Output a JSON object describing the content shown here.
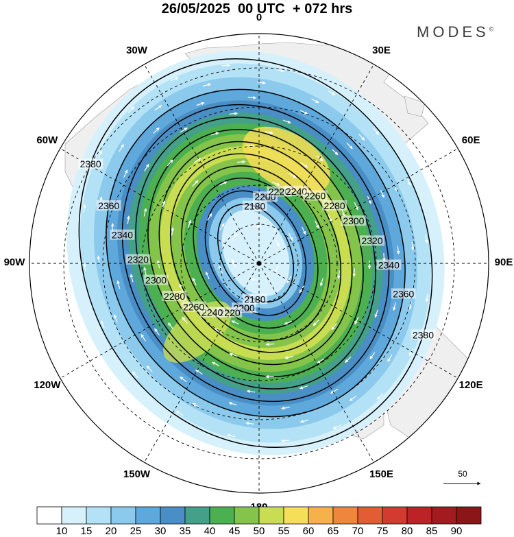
{
  "title": "26/05/2025  00 UTC  + 072 hrs",
  "brand": {
    "text": "MODES",
    "mark": "©"
  },
  "longitude_labels": [
    "0",
    "30E",
    "60E",
    "90E",
    "120E",
    "150E",
    "180",
    "150W",
    "120W",
    "90W",
    "60W",
    "30W"
  ],
  "vector_reference": {
    "label": "50"
  },
  "colorbar": {
    "ticks": [
      "10",
      "15",
      "20",
      "25",
      "30",
      "35",
      "40",
      "45",
      "50",
      "55",
      "60",
      "65",
      "70",
      "75",
      "80",
      "85",
      "90"
    ],
    "colors": [
      "#ffffff",
      "#d6f1fb",
      "#b3e2f6",
      "#8ccaed",
      "#5fa8dc",
      "#4a8ec6",
      "#45a08a",
      "#4cb050",
      "#84c44a",
      "#c9dd52",
      "#f6de58",
      "#f5b24a",
      "#f0863d",
      "#e25c35",
      "#d33a30",
      "#bd2326",
      "#a31b1e",
      "#8c1518"
    ]
  },
  "contours": {
    "labels": [
      "2180",
      "2200",
      "2220",
      "2240",
      "2260",
      "2280",
      "2300",
      "2320",
      "2340",
      "2360",
      "2380"
    ]
  }
}
